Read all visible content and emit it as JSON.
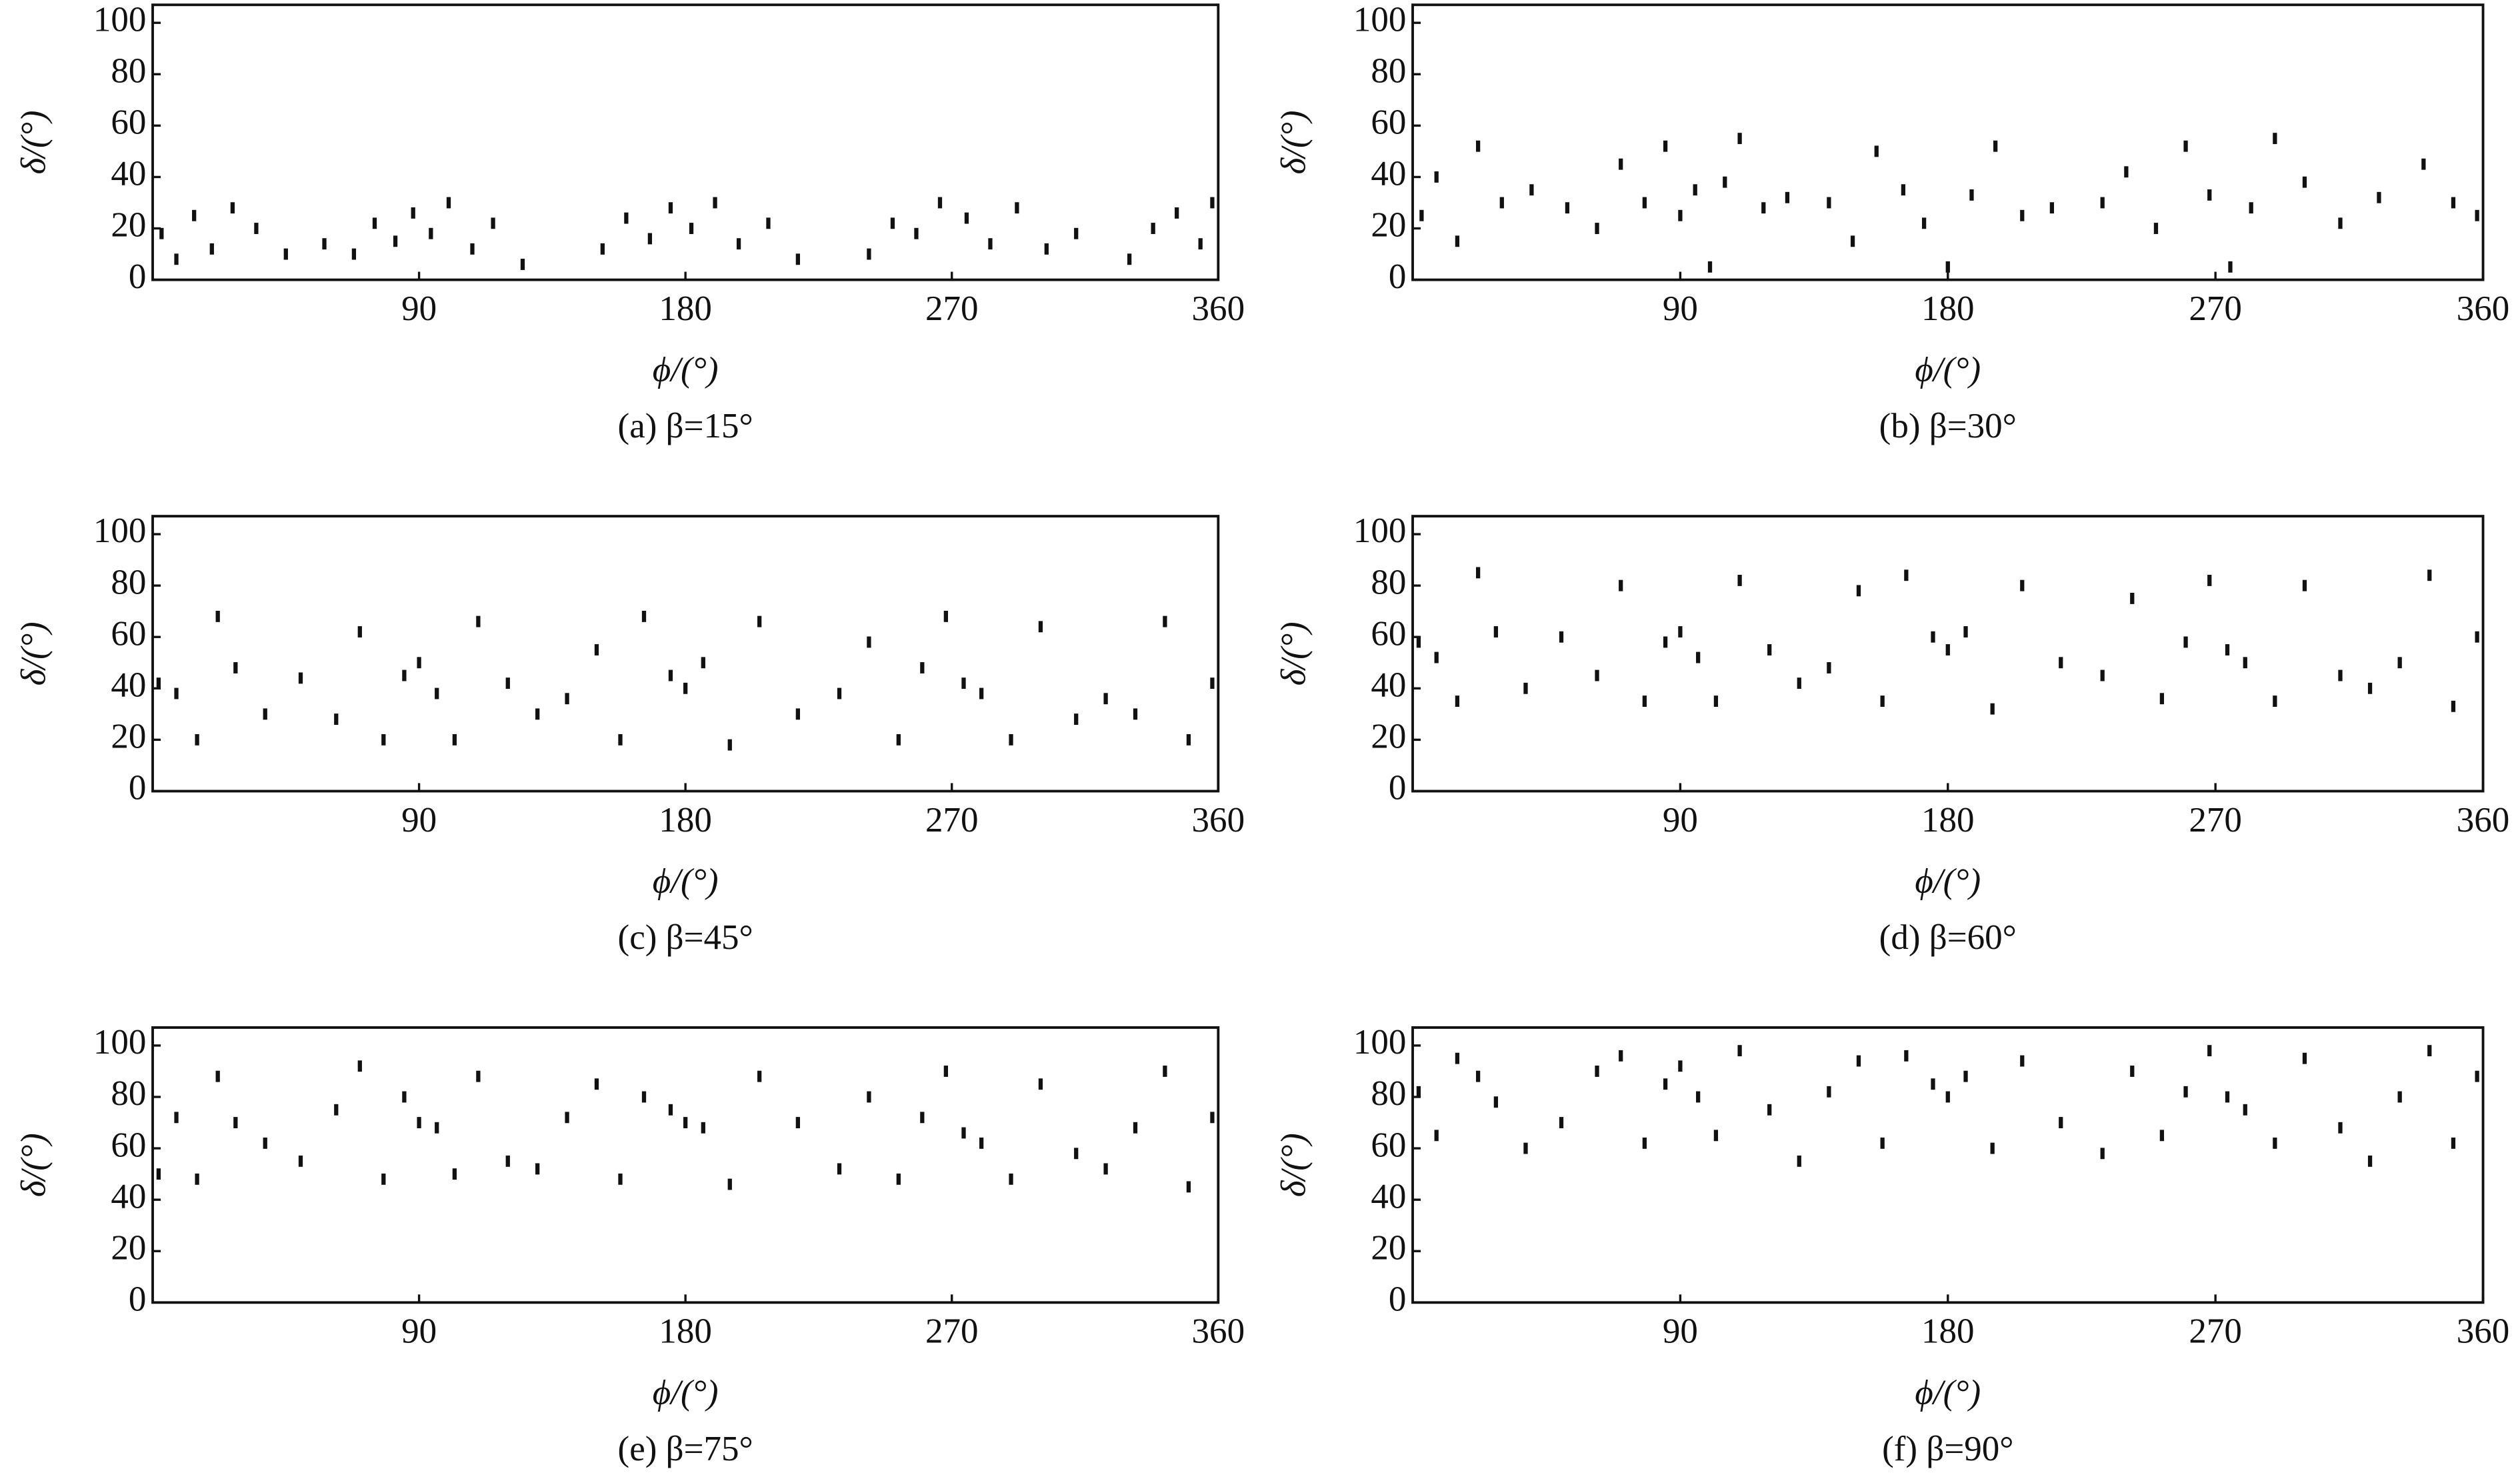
{
  "chart_data": [
    {
      "type": "scatter",
      "caption": "(a) β=15°",
      "xlabel": "ϕ/(°)",
      "ylabel": "δ/(°)",
      "color": "#111111",
      "xlim": [
        0,
        360
      ],
      "ylim": [
        0,
        107
      ],
      "xticks": [
        90,
        180,
        270,
        360
      ],
      "yticks": [
        0,
        20,
        40,
        60,
        80,
        100
      ],
      "x": [
        3,
        8,
        14,
        20,
        27,
        35,
        45,
        58,
        68,
        75,
        82,
        88,
        94,
        100,
        108,
        115,
        125,
        152,
        160,
        168,
        175,
        182,
        190,
        198,
        208,
        218,
        242,
        250,
        258,
        266,
        275,
        283,
        292,
        302,
        312,
        330,
        338,
        346,
        354,
        358
      ],
      "values": [
        18,
        8,
        25,
        12,
        28,
        20,
        10,
        14,
        10,
        22,
        15,
        26,
        18,
        30,
        12,
        22,
        6,
        12,
        24,
        16,
        28,
        20,
        30,
        14,
        22,
        8,
        10,
        22,
        18,
        30,
        24,
        14,
        28,
        12,
        18,
        8,
        20,
        26,
        14,
        30
      ]
    },
    {
      "type": "scatter",
      "caption": "(b) β=30°",
      "xlabel": "ϕ/(°)",
      "ylabel": "δ/(°)",
      "color": "#111111",
      "xlim": [
        0,
        360
      ],
      "ylim": [
        0,
        107
      ],
      "xticks": [
        90,
        180,
        270,
        360
      ],
      "yticks": [
        0,
        20,
        40,
        60,
        80,
        100
      ],
      "x": [
        3,
        8,
        15,
        22,
        30,
        40,
        52,
        62,
        70,
        78,
        85,
        90,
        95,
        100,
        105,
        110,
        118,
        126,
        140,
        148,
        156,
        165,
        172,
        180,
        188,
        196,
        205,
        215,
        232,
        240,
        250,
        260,
        268,
        275,
        282,
        290,
        300,
        312,
        325,
        340,
        350,
        358
      ],
      "values": [
        25,
        40,
        15,
        52,
        30,
        35,
        28,
        20,
        45,
        30,
        52,
        25,
        35,
        5,
        38,
        55,
        28,
        32,
        30,
        15,
        50,
        35,
        22,
        5,
        33,
        52,
        25,
        28,
        30,
        42,
        20,
        52,
        33,
        5,
        28,
        55,
        38,
        22,
        32,
        45,
        30,
        25
      ]
    },
    {
      "type": "scatter",
      "caption": "(c) β=45°",
      "xlabel": "ϕ/(°)",
      "ylabel": "δ/(°)",
      "color": "#111111",
      "xlim": [
        0,
        360
      ],
      "ylim": [
        0,
        107
      ],
      "xticks": [
        90,
        180,
        270,
        360
      ],
      "yticks": [
        0,
        20,
        40,
        60,
        80,
        100
      ],
      "x": [
        2,
        8,
        15,
        22,
        28,
        38,
        50,
        62,
        70,
        78,
        85,
        90,
        96,
        102,
        110,
        120,
        130,
        140,
        150,
        158,
        166,
        175,
        180,
        186,
        195,
        205,
        218,
        232,
        242,
        252,
        260,
        268,
        274,
        280,
        290,
        300,
        312,
        322,
        332,
        342,
        350,
        358
      ],
      "values": [
        42,
        38,
        20,
        68,
        48,
        30,
        44,
        28,
        62,
        20,
        45,
        50,
        38,
        20,
        66,
        42,
        30,
        36,
        55,
        20,
        68,
        45,
        40,
        50,
        18,
        66,
        30,
        38,
        58,
        20,
        48,
        68,
        42,
        38,
        20,
        64,
        28,
        36,
        30,
        66,
        20,
        42
      ]
    },
    {
      "type": "scatter",
      "caption": "(d) β=60°",
      "xlabel": "ϕ/(°)",
      "ylabel": "δ/(°)",
      "color": "#111111",
      "xlim": [
        0,
        360
      ],
      "ylim": [
        0,
        107
      ],
      "xticks": [
        90,
        180,
        270,
        360
      ],
      "yticks": [
        0,
        20,
        40,
        60,
        80,
        100
      ],
      "x": [
        2,
        8,
        15,
        22,
        28,
        38,
        50,
        62,
        70,
        78,
        85,
        90,
        96,
        102,
        110,
        120,
        130,
        140,
        150,
        158,
        166,
        175,
        180,
        186,
        195,
        205,
        218,
        232,
        242,
        252,
        260,
        268,
        274,
        280,
        290,
        300,
        312,
        322,
        332,
        342,
        350,
        358
      ],
      "values": [
        58,
        52,
        35,
        85,
        62,
        40,
        60,
        45,
        80,
        35,
        58,
        62,
        52,
        35,
        82,
        55,
        42,
        48,
        78,
        35,
        84,
        60,
        55,
        62,
        32,
        80,
        50,
        45,
        75,
        36,
        58,
        82,
        55,
        50,
        35,
        80,
        45,
        40,
        50,
        84,
        33,
        60
      ]
    },
    {
      "type": "scatter",
      "caption": "(e) β=75°",
      "xlabel": "ϕ/(°)",
      "ylabel": "δ/(°)",
      "color": "#111111",
      "xlim": [
        0,
        360
      ],
      "ylim": [
        0,
        107
      ],
      "xticks": [
        90,
        180,
        270,
        360
      ],
      "yticks": [
        0,
        20,
        40,
        60,
        80,
        100
      ],
      "x": [
        2,
        8,
        15,
        22,
        28,
        38,
        50,
        62,
        70,
        78,
        85,
        90,
        96,
        102,
        110,
        120,
        130,
        140,
        150,
        158,
        166,
        175,
        180,
        186,
        195,
        205,
        218,
        232,
        242,
        252,
        260,
        268,
        274,
        280,
        290,
        300,
        312,
        322,
        332,
        342,
        350,
        358
      ],
      "values": [
        50,
        72,
        48,
        88,
        70,
        62,
        55,
        75,
        92,
        48,
        80,
        70,
        68,
        50,
        88,
        55,
        52,
        72,
        85,
        48,
        80,
        75,
        70,
        68,
        46,
        88,
        70,
        52,
        80,
        48,
        72,
        90,
        66,
        62,
        48,
        85,
        58,
        52,
        68,
        90,
        45,
        72
      ]
    },
    {
      "type": "scatter",
      "caption": "(f) β=90°",
      "xlabel": "ϕ/(°)",
      "ylabel": "δ/(°)",
      "color": "#111111",
      "xlim": [
        0,
        360
      ],
      "ylim": [
        0,
        107
      ],
      "xticks": [
        90,
        180,
        270,
        360
      ],
      "yticks": [
        0,
        20,
        40,
        60,
        80,
        100
      ],
      "x": [
        2,
        8,
        15,
        22,
        28,
        38,
        50,
        62,
        70,
        78,
        85,
        90,
        96,
        102,
        110,
        120,
        130,
        140,
        150,
        158,
        166,
        175,
        180,
        186,
        195,
        205,
        218,
        232,
        242,
        252,
        260,
        268,
        274,
        280,
        290,
        300,
        312,
        322,
        332,
        342,
        350,
        358
      ],
      "values": [
        82,
        65,
        95,
        88,
        78,
        60,
        70,
        90,
        96,
        62,
        85,
        92,
        80,
        65,
        98,
        75,
        55,
        82,
        94,
        62,
        96,
        85,
        80,
        88,
        60,
        94,
        70,
        58,
        90,
        65,
        82,
        98,
        80,
        75,
        62,
        95,
        68,
        55,
        80,
        98,
        62,
        88
      ]
    }
  ]
}
